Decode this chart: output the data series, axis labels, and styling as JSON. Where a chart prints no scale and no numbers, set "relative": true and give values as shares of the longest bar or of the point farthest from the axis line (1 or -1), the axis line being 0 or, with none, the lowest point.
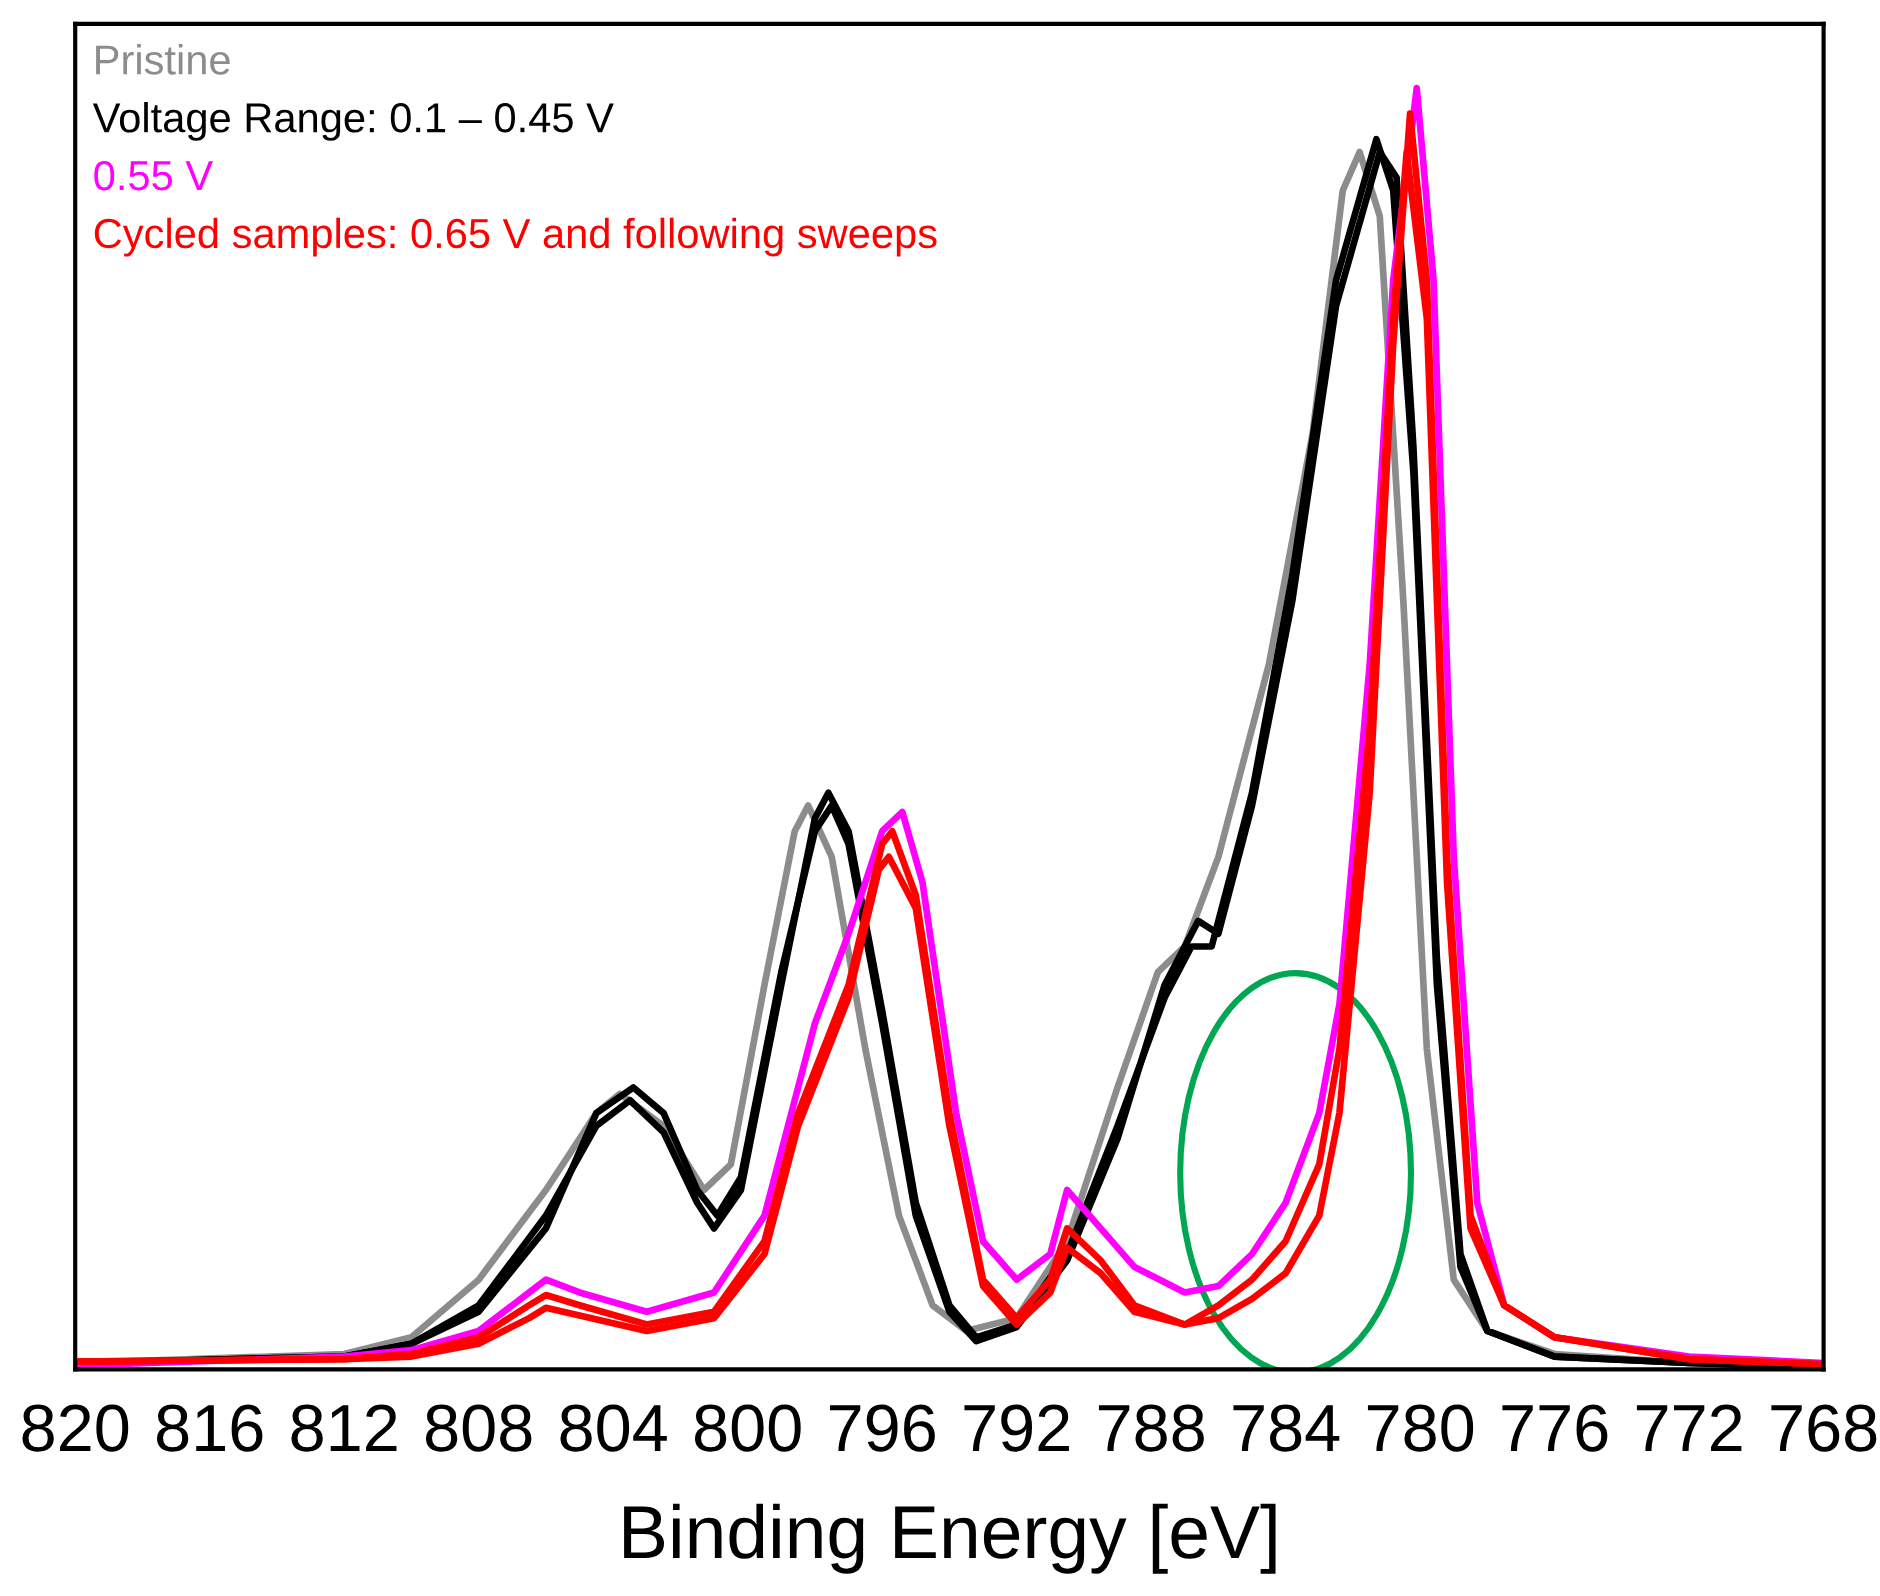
{
  "chart_data": {
    "type": "line",
    "xlabel": "Binding Energy [eV]",
    "relative": true,
    "xlim": [
      820,
      768
    ],
    "xticks": [
      820,
      816,
      812,
      808,
      804,
      800,
      796,
      792,
      788,
      784,
      780,
      776,
      772,
      768
    ],
    "series": [
      {
        "name": "Pristine",
        "color": "#8c8c8c",
        "x": [
          820,
          812,
          810,
          808,
          806,
          804.5,
          803.8,
          802.5,
          801.3,
          800.5,
          799.5,
          798.6,
          798.2,
          797.5,
          796.5,
          795.5,
          794.5,
          793.5,
          792,
          790.5,
          789,
          787.8,
          787,
          786,
          784.5,
          783.2,
          782.3,
          781.8,
          781.2,
          780.5,
          779.8,
          779,
          778,
          776,
          772,
          768
        ],
        "values": [
          0.005,
          0.012,
          0.025,
          0.07,
          0.14,
          0.2,
          0.215,
          0.19,
          0.14,
          0.16,
          0.3,
          0.42,
          0.44,
          0.4,
          0.25,
          0.12,
          0.05,
          0.03,
          0.04,
          0.1,
          0.22,
          0.31,
          0.33,
          0.4,
          0.55,
          0.73,
          0.92,
          0.95,
          0.9,
          0.6,
          0.25,
          0.07,
          0.03,
          0.012,
          0.005,
          0.002
        ]
      },
      {
        "name": "Voltage Range: 0.1 – 0.45 V",
        "color": "#000000",
        "x": [
          820,
          812,
          810,
          808,
          806,
          804.5,
          803.5,
          802.5,
          801.5,
          801,
          800.2,
          799,
          798,
          797.6,
          797,
          796,
          795,
          794,
          793.2,
          792,
          790.5,
          789,
          787.6,
          786.8,
          786.2,
          785,
          783.8,
          782.5,
          781.3,
          780.8,
          780.2,
          779.5,
          778.8,
          778,
          776,
          772,
          768
        ],
        "values": [
          0.005,
          0.01,
          0.02,
          0.05,
          0.12,
          0.19,
          0.21,
          0.185,
          0.13,
          0.11,
          0.14,
          0.3,
          0.43,
          0.45,
          0.42,
          0.28,
          0.13,
          0.05,
          0.025,
          0.035,
          0.09,
          0.19,
          0.29,
          0.33,
          0.33,
          0.45,
          0.62,
          0.85,
          0.96,
          0.92,
          0.7,
          0.3,
          0.08,
          0.03,
          0.01,
          0.005,
          0.002
        ]
      },
      {
        "color": "#000000",
        "x": [
          820,
          812,
          810,
          808,
          806,
          804.5,
          803.4,
          802.5,
          801.5,
          800.9,
          800.2,
          799,
          798,
          797.5,
          797,
          796,
          795,
          794,
          793.2,
          792,
          790.5,
          789,
          787.6,
          786.6,
          786,
          785,
          783.8,
          782.5,
          781.2,
          780.7,
          780.2,
          779.5,
          778.8,
          778,
          776,
          772,
          768
        ],
        "values": [
          0.005,
          0.01,
          0.02,
          0.045,
          0.11,
          0.2,
          0.22,
          0.2,
          0.14,
          0.12,
          0.15,
          0.31,
          0.42,
          0.44,
          0.41,
          0.27,
          0.12,
          0.045,
          0.022,
          0.033,
          0.085,
          0.18,
          0.3,
          0.35,
          0.34,
          0.44,
          0.6,
          0.83,
          0.95,
          0.93,
          0.72,
          0.32,
          0.09,
          0.03,
          0.01,
          0.005,
          0.002
        ]
      },
      {
        "name": "0.55 V",
        "color": "#ff00ff",
        "x": [
          820,
          812,
          810,
          808,
          806.5,
          806,
          805,
          803,
          801,
          799.5,
          798,
          797,
          796,
          795.4,
          794.8,
          793.8,
          793,
          792,
          791,
          790.5,
          789.5,
          788.5,
          787,
          786,
          785,
          784,
          783,
          782.4,
          781.5,
          780.8,
          780.1,
          779.6,
          779,
          778.3,
          777.5,
          776,
          772,
          768
        ],
        "values": [
          0.003,
          0.01,
          0.015,
          0.03,
          0.06,
          0.07,
          0.06,
          0.045,
          0.06,
          0.12,
          0.27,
          0.34,
          0.42,
          0.435,
          0.38,
          0.2,
          0.1,
          0.07,
          0.09,
          0.14,
          0.11,
          0.08,
          0.06,
          0.065,
          0.09,
          0.13,
          0.2,
          0.285,
          0.55,
          0.85,
          1.0,
          0.85,
          0.4,
          0.13,
          0.05,
          0.025,
          0.01,
          0.005
        ]
      },
      {
        "name": "Cycled samples: 0.65 V and following sweeps",
        "color": "#ff0000",
        "x": [
          820,
          812,
          810,
          808,
          806.5,
          806,
          805,
          803,
          801,
          799.5,
          798.5,
          797,
          796,
          795.7,
          795,
          794,
          793,
          792,
          791,
          790.5,
          789.5,
          788.5,
          787,
          786,
          785,
          784,
          783,
          782.4,
          781.5,
          780.8,
          780.3,
          779.8,
          779.2,
          778.5,
          777.5,
          776,
          772,
          768
        ],
        "values": [
          0.006,
          0.008,
          0.012,
          0.025,
          0.05,
          0.058,
          0.05,
          0.035,
          0.045,
          0.1,
          0.2,
          0.3,
          0.41,
          0.42,
          0.37,
          0.2,
          0.07,
          0.04,
          0.07,
          0.11,
          0.085,
          0.05,
          0.035,
          0.04,
          0.055,
          0.075,
          0.12,
          0.2,
          0.45,
          0.8,
          0.98,
          0.85,
          0.4,
          0.12,
          0.05,
          0.025,
          0.008,
          0.004
        ]
      },
      {
        "color": "#ff0000",
        "x": [
          820,
          812,
          810,
          808,
          806.5,
          806,
          805,
          803,
          801,
          799.5,
          798.5,
          797,
          796.1,
          795.8,
          795,
          794,
          793,
          792,
          791,
          790.5,
          789.5,
          788.5,
          787,
          786,
          785,
          784,
          783,
          782.4,
          781.5,
          780.8,
          780.4,
          779.8,
          779.2,
          778.5,
          777.5,
          776,
          772,
          768
        ],
        "values": [
          0.006,
          0.008,
          0.01,
          0.02,
          0.04,
          0.048,
          0.042,
          0.03,
          0.04,
          0.09,
          0.19,
          0.29,
          0.39,
          0.4,
          0.36,
          0.19,
          0.065,
          0.035,
          0.06,
          0.095,
          0.075,
          0.045,
          0.035,
          0.05,
          0.07,
          0.1,
          0.16,
          0.25,
          0.5,
          0.82,
          0.95,
          0.82,
          0.38,
          0.11,
          0.05,
          0.025,
          0.008,
          0.004
        ]
      }
    ]
  }
}
